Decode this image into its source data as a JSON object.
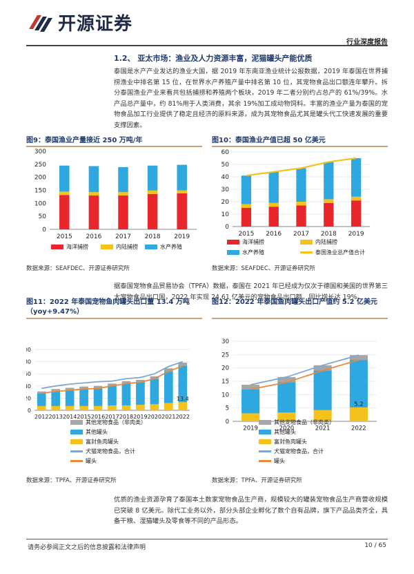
{
  "header": {
    "logo_text": "开源证券",
    "report_type": "行业深度报告"
  },
  "section": {
    "heading": "1.2、 亚太市场：渔业及人力资源丰富，泥猫罐头产能优质",
    "para1": "泰国是水产产业发达的渔业大国，据 2019 年东南亚渔业统计公报数据，2019 年泰国在世界捕捞渔业中排名第 15 位，在世界水产养殖产量中排名第 10 位，其宠物食品出口额连年攀升。拆分泰国渔业产业来看共包括捕捞和养殖两个板块，2019 年二者分别约占总产的 61%/39%。水产品总产量中，约 81%用于人类消费，其余 19%加工成动物饲料。丰富的渔业产量为泰国的宠物食品加工行业提供了稳定且经济的原料来源，成为其宠物食品尤其是罐头代工快速发展的重要支撑因素。",
    "para2": "据泰国宠物食品贸易协会（TPFA）数据，泰国在 2021 年已经成为仅次于德国和美国的世界第三大宠物食品出口国，2022 年实现 24.61 亿美元的宠物食品出口额，同比增长达 19%。",
    "para3": "优质的渔业资源孕育了泰国本土数家宠物食品生产商，规模较大的罐装宠物食品生产商营收规模已突破 8 亿美元。除代工业务以外，部分头部企业孵化了数个自有品牌，旗下产品品类齐全，具备干粮、湿猫罐头及零食等不同的产品形态。"
  },
  "figures": {
    "fig9": {
      "title": "图9：泰国渔业产量接近 250 万吨/年",
      "source": "数据来源：SEAFDEC、开源证券研究所"
    },
    "fig10": {
      "title": "图10：泰国渔业产值已超 50 亿美元",
      "source": "数据来源：SEAFDEC、开源证券研究所"
    },
    "fig11": {
      "title": "图11：2022 年泰国宠物鱼肉罐头出口量 13.4 万吨（yoy+9.47%）",
      "source": "数据来源：TPFA、开源证券研究所"
    },
    "fig12": {
      "title": "图12：2022 年泰国鱼肉罐头出口产值约 5.2 亿美元",
      "source": "数据来源：TPFA、开源证券研究所"
    }
  },
  "chart_data": [
    {
      "id": "fig9",
      "type": "bar",
      "stacked": true,
      "categories": [
        "2015",
        "2016",
        "2017",
        "2018",
        "2019"
      ],
      "ylim": [
        0,
        300
      ],
      "yticks": [
        0,
        50,
        100,
        150,
        200,
        250,
        300
      ],
      "series": [
        {
          "name": "海洋捕捞",
          "color": "#e8262b",
          "values": [
            132,
            130,
            130,
            136,
            138
          ]
        },
        {
          "name": "内陆捕捞",
          "color": "#f5c21b",
          "values": [
            13,
            13,
            13,
            13,
            12
          ]
        },
        {
          "name": "水产养殖",
          "color": "#2fa8e0",
          "values": [
            100,
            100,
            96,
            96,
            98
          ]
        }
      ],
      "legend": "bottom"
    },
    {
      "id": "fig10",
      "type": "bar",
      "stacked": true,
      "categories": [
        "2015",
        "2016",
        "2017",
        "2018",
        "2019"
      ],
      "ylim": [
        0,
        60
      ],
      "yticks": [
        0,
        10,
        20,
        30,
        40,
        50,
        60
      ],
      "series": [
        {
          "name": "海洋捕捞",
          "color": "#e8262b",
          "values": [
            15,
            16,
            17,
            19,
            21
          ]
        },
        {
          "name": "内陆捕捞",
          "color": "#f5c21b",
          "values": [
            3,
            3,
            3,
            3,
            3
          ]
        },
        {
          "name": "水产养殖",
          "color": "#2fa8e0",
          "values": [
            23,
            25,
            27,
            30,
            31
          ]
        }
      ],
      "line": {
        "name": "泰国渔业总产值合计",
        "color": "#f5c21b",
        "values": [
          41,
          44,
          47,
          52,
          55
        ]
      },
      "legend": "bottom"
    },
    {
      "id": "fig11",
      "type": "bar",
      "stacked": true,
      "categories": [
        "2012",
        "2013",
        "2014",
        "2015",
        "2016",
        "2017",
        "2018",
        "2019",
        "2020",
        "2021",
        "2022"
      ],
      "ylim": [
        0,
        100
      ],
      "yticks": [
        0,
        20,
        40,
        60,
        80,
        100
      ],
      "series": [
        {
          "name": "富封鱼肉罐头",
          "color": "#f5c21b",
          "values": [
            7,
            7,
            7,
            7,
            7,
            8,
            8,
            9,
            10,
            12,
            13.4
          ]
        },
        {
          "name": "其他罐头",
          "color": "#2fa8e0",
          "values": [
            21,
            24,
            26,
            28,
            29,
            32,
            36,
            37,
            42,
            52,
            60
          ]
        },
        {
          "name": "其他宠物食品（非肉类）",
          "color": "#a6a6a6",
          "values": [
            3,
            4,
            4,
            4,
            4,
            4,
            4,
            4,
            4,
            5,
            5
          ]
        }
      ],
      "lines": [
        {
          "name": "犬猫宠物食品，合计",
          "color": "#7fa6cc",
          "values": [
            36,
            40,
            43,
            45,
            47,
            48,
            52,
            54,
            60,
            72,
            80
          ]
        },
        {
          "name": "罐头",
          "color": "#e88a3c",
          "values": [
            28,
            31,
            33,
            35,
            36,
            40,
            44,
            46,
            52,
            64,
            73
          ]
        }
      ],
      "annotations": [
        {
          "text": "13.4",
          "category": "2022"
        }
      ],
      "legend": "bottom"
    },
    {
      "id": "fig12",
      "type": "bar",
      "stacked": true,
      "categories": [
        "2019",
        "2020",
        "2021",
        "2022"
      ],
      "ylim": [
        0,
        30
      ],
      "yticks": [
        0,
        5,
        10,
        15,
        20,
        25,
        30
      ],
      "series": [
        {
          "name": "富封鱼肉罐头",
          "color": "#f5c21b",
          "values": [
            3,
            3.3,
            4.2,
            5.2
          ]
        },
        {
          "name": "其他罐头",
          "color": "#2fa8e0",
          "values": [
            9,
            11.3,
            14.8,
            17.8
          ]
        },
        {
          "name": "其他宠物食品（非肉类）",
          "color": "#a6a6a6",
          "values": [
            1.7,
            2,
            2,
            1.8
          ]
        }
      ],
      "lines": [
        {
          "name": "犬猫宠物食品，合计",
          "color": "#7fa6cc",
          "values": [
            13.7,
            16.6,
            21,
            24.8
          ]
        },
        {
          "name": "罐头",
          "color": "#e88a3c",
          "values": [
            12,
            14.6,
            19,
            23
          ]
        }
      ],
      "annotations": [
        {
          "text": "5.2",
          "category": "2022"
        }
      ],
      "legend": "bottom"
    }
  ],
  "legends": {
    "fig9": [
      "海洋捕捞",
      "内陆捕捞",
      "水产养殖"
    ],
    "fig10": [
      "海洋捕捞",
      "内陆捕捞",
      "水产养殖",
      "泰国渔业总产值合计"
    ],
    "fig11": [
      "其他宠物食品（非肉类）",
      "其他罐头",
      "富封鱼肉罐头",
      "犬猫宠物食品，合计",
      "罐头"
    ],
    "fig12": [
      "其他宠物食品（非肉类）",
      "其他罐头",
      "富封鱼肉罐头",
      "犬猫宠物食品，合计",
      "罐头"
    ]
  },
  "footer": {
    "disclaimer": "请务必参阅正文之后的信息披露和法律声明",
    "page": "10 / 65"
  }
}
